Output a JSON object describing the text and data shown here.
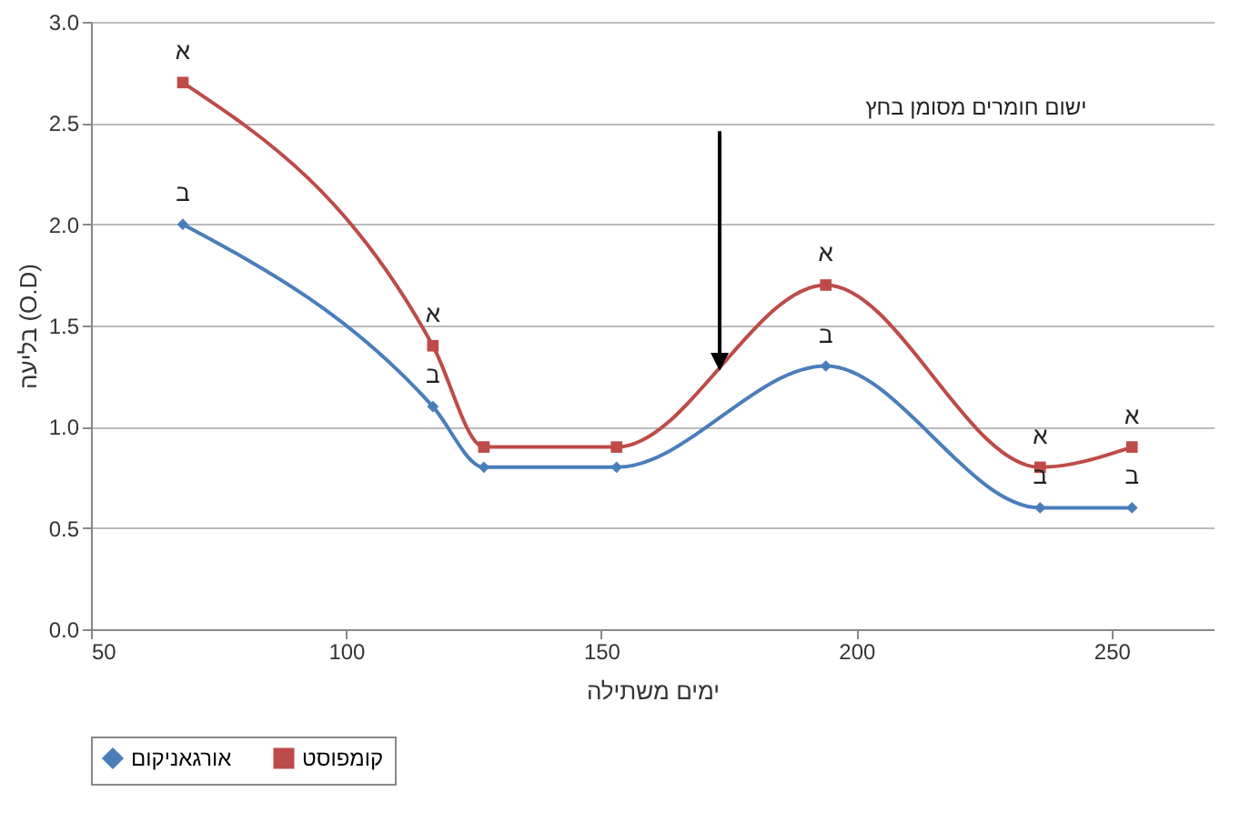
{
  "chart_data": {
    "type": "line",
    "xlabel": "ימים משתילה",
    "ylabel": "בליעה (O.D)",
    "x": [
      68,
      117,
      127,
      153,
      194,
      236,
      254
    ],
    "series": [
      {
        "name": "אורגאניקום",
        "color": "#4a7ebb",
        "marker": "diamond",
        "values": [
          2.0,
          1.1,
          0.8,
          0.8,
          1.3,
          0.6,
          0.6
        ]
      },
      {
        "name": "קומפוסט",
        "color": "#be4b48",
        "marker": "square",
        "values": [
          2.7,
          1.4,
          0.9,
          0.9,
          1.7,
          0.8,
          0.9
        ]
      }
    ],
    "xlim": [
      50,
      270
    ],
    "xticks": [
      50,
      100,
      150,
      200,
      250
    ],
    "ylim": [
      0,
      3
    ],
    "yticks": [
      {
        "value": 0,
        "label": "0.0"
      },
      {
        "value": 0.5,
        "label": "0.5"
      },
      {
        "value": 1,
        "label": "1.0"
      },
      {
        "value": 1.5,
        "label": "1.5"
      },
      {
        "value": 2,
        "label": "2.0"
      },
      {
        "value": 2.5,
        "label": "2.5"
      },
      {
        "value": 3,
        "label": "3.0"
      }
    ],
    "grid": "y",
    "legend": "bottom",
    "annotations": [
      "ישום חומרים מסומן בחץ",
      {
        "text": "א",
        "x": 68,
        "y": 2.7
      },
      {
        "text": "ב",
        "x": 68,
        "y": 2.0
      },
      {
        "text": "א",
        "x": 117,
        "y": 1.4
      },
      {
        "text": "ב",
        "x": 117,
        "y": 1.1
      },
      {
        "text": "א",
        "x": 194,
        "y": 1.7
      },
      {
        "text": "ב",
        "x": 194,
        "y": 1.3
      },
      {
        "text": "א",
        "x": 236,
        "y": 0.8
      },
      {
        "text": "ב",
        "x": 236,
        "y": 0.6
      },
      {
        "text": "א",
        "x": 254,
        "y": 0.9
      },
      {
        "text": "ב",
        "x": 254,
        "y": 0.6
      }
    ]
  }
}
